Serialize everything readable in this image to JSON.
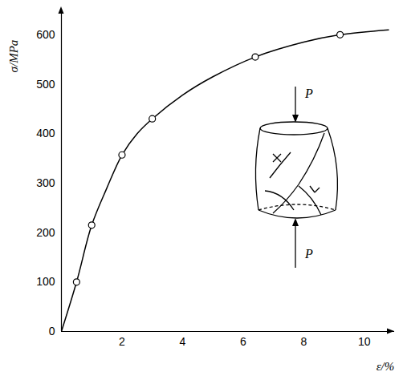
{
  "chart_data": {
    "type": "line",
    "xlabel": "ε/%",
    "ylabel": "σ/MPa",
    "xlim": [
      0,
      11
    ],
    "ylim": [
      0,
      650
    ],
    "xticks": [
      2,
      4,
      6,
      8,
      10
    ],
    "yticks": [
      0,
      100,
      200,
      300,
      400,
      500,
      600
    ],
    "grid": false,
    "color": "#000000",
    "series": [
      {
        "type": "line",
        "marker": "none",
        "line_style": "solid",
        "x": [
          0,
          0.5,
          1.0,
          1.5,
          2.0,
          2.5,
          3.0,
          4.0,
          5.0,
          6.4,
          8.0,
          9.2,
          10.8
        ],
        "values": [
          0,
          100,
          215,
          290,
          357,
          400,
          430,
          478,
          515,
          555,
          585,
          600,
          610
        ]
      },
      {
        "type": "scatter",
        "marker": "circle",
        "x": [
          0.5,
          1.0,
          2.0,
          3.0,
          6.4,
          9.2
        ],
        "values": [
          100,
          215,
          357,
          430,
          555,
          600
        ]
      }
    ],
    "annotations": [
      "P",
      "P"
    ]
  }
}
